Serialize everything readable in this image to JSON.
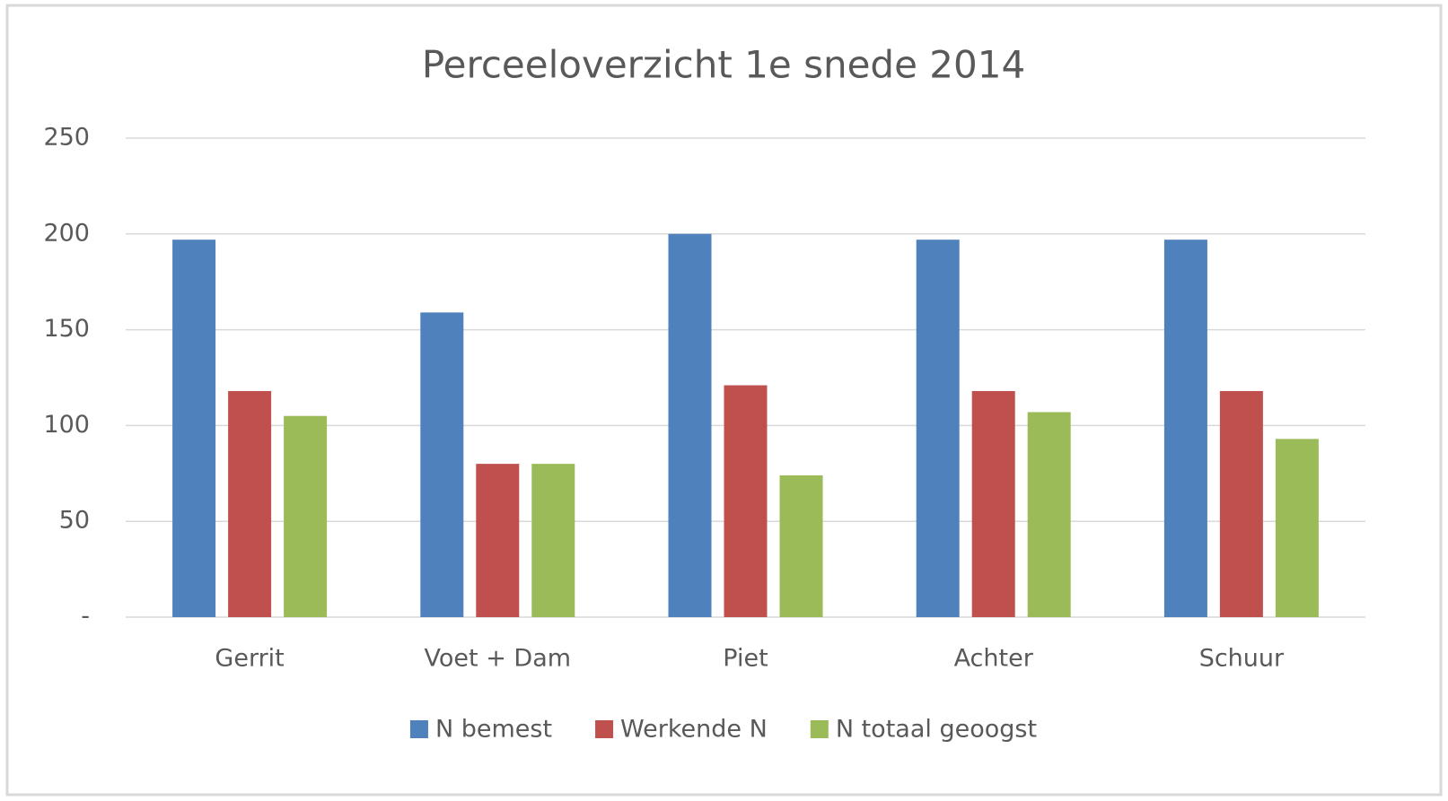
{
  "chart_data": {
    "type": "bar",
    "title": "Perceeloverzicht  1e snede  2014",
    "categories": [
      "Gerrit",
      "Voet + Dam",
      "Piet",
      "Achter",
      "Schuur"
    ],
    "series": [
      {
        "name": "N bemest",
        "color": "#4f81bd",
        "values": [
          197,
          159,
          200,
          197,
          197
        ]
      },
      {
        "name": "Werkende N",
        "color": "#c0504d",
        "values": [
          118,
          80,
          121,
          118,
          118
        ]
      },
      {
        "name": "N totaal geoogst",
        "color": "#9bbb59",
        "values": [
          105,
          80,
          74,
          107,
          93
        ]
      }
    ],
    "ylim": [
      0,
      250
    ],
    "yticks": [
      {
        "value": 0,
        "label": "-"
      },
      50,
      100,
      150,
      200,
      250
    ],
    "grid": true,
    "legend": "bottom"
  }
}
